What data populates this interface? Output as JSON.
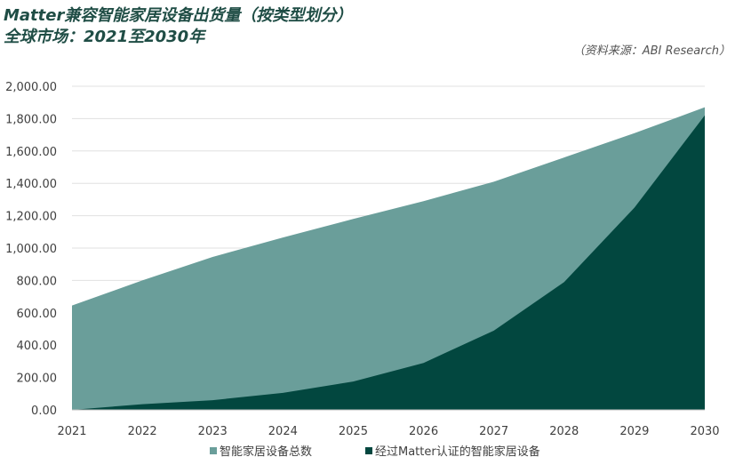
{
  "chart_data": {
    "type": "area",
    "title_line1": "Matter兼容智能家居设备出货量（按类型划分）",
    "title_line2": "全球市场：2021至2030年",
    "source": "（资料来源：ABI Research）",
    "categories": [
      "2021",
      "2022",
      "2023",
      "2024",
      "2025",
      "2026",
      "2027",
      "2028",
      "2029",
      "2030"
    ],
    "y_tick_labels": [
      "0.00",
      "200.00",
      "400.00",
      "600.00",
      "800.00",
      "1,000.00",
      "1,200.00",
      "1,400.00",
      "1,600.00",
      "1,800.00",
      "2,000.00"
    ],
    "ylim": [
      0,
      2000
    ],
    "grid": true,
    "legend_position": "bottom",
    "series": [
      {
        "name": "智能家居设备总数",
        "color": "#6a9e9a",
        "values": [
          645,
          800,
          945,
          1065,
          1180,
          1290,
          1410,
          1560,
          1710,
          1870
        ]
      },
      {
        "name": "经过Matter认证的智能家居设备",
        "color": "#02473f",
        "values": [
          0,
          35,
          60,
          105,
          175,
          290,
          490,
          790,
          1250,
          1820
        ]
      }
    ]
  }
}
